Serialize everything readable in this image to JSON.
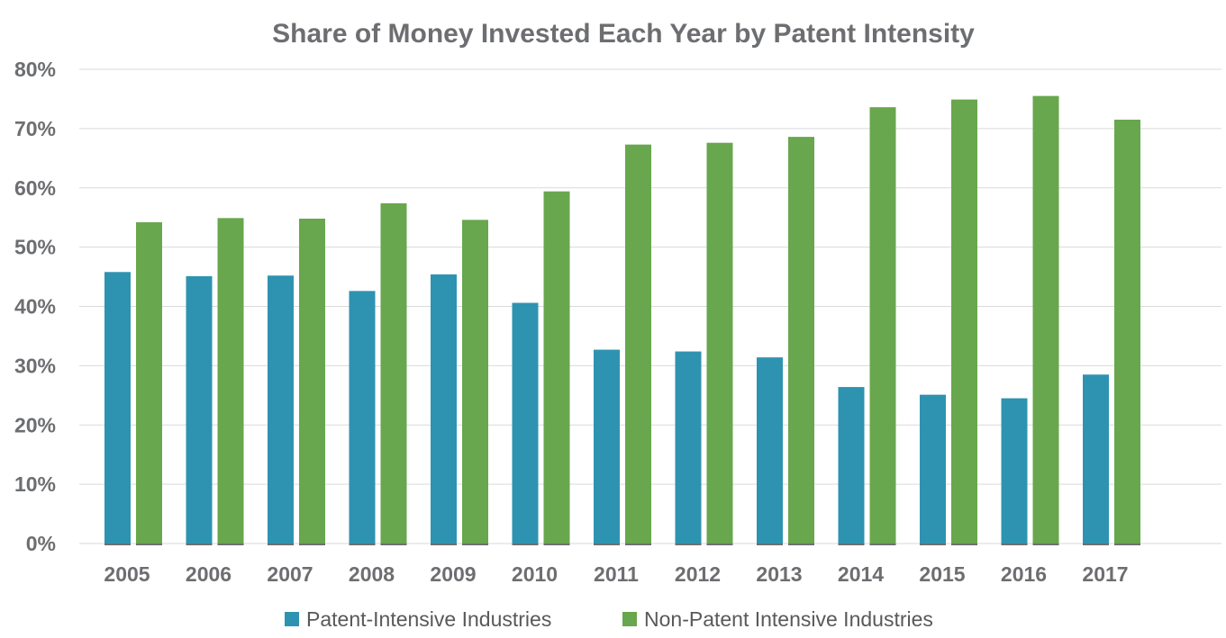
{
  "chart_data": {
    "type": "bar",
    "title": "Share of Money Invested Each Year by Patent Intensity",
    "xlabel": "",
    "ylabel": "",
    "ylim": [
      0,
      80
    ],
    "ytick_values": [
      0,
      10,
      20,
      30,
      40,
      50,
      60,
      70,
      80
    ],
    "ytick_suffix": "%",
    "grid": true,
    "legend_position": "bottom",
    "categories": [
      "2005",
      "2006",
      "2007",
      "2008",
      "2009",
      "2010",
      "2011",
      "2012",
      "2013",
      "2014",
      "2015",
      "2016",
      "2017"
    ],
    "series": [
      {
        "name": "Patent-Intensive Industries",
        "color": "#2e93b0",
        "values": [
          45.8,
          45.1,
          45.2,
          42.6,
          45.4,
          40.6,
          32.7,
          32.4,
          31.4,
          26.4,
          25.1,
          24.5,
          28.5
        ]
      },
      {
        "name": "Non-Patent Intensive Industries",
        "color": "#68a74d",
        "values": [
          54.2,
          54.9,
          54.8,
          57.4,
          54.6,
          59.4,
          67.3,
          67.6,
          68.6,
          73.6,
          74.9,
          75.5,
          71.5
        ]
      }
    ]
  }
}
